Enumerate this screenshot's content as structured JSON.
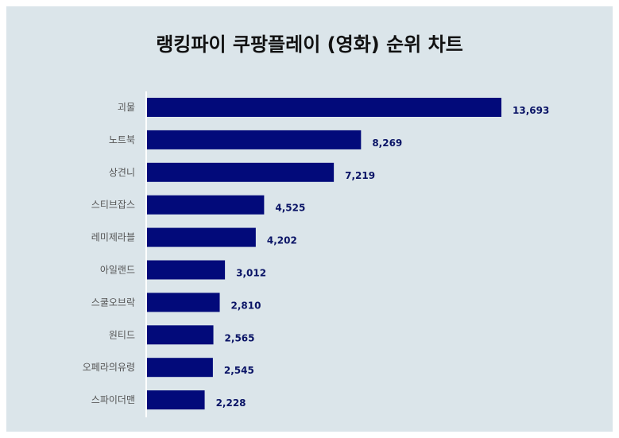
{
  "chart_data": {
    "type": "bar",
    "orientation": "horizontal",
    "title": "랭킹파이 쿠팡플레이 (영화) 순위 차트",
    "categories": [
      "괴물",
      "노트북",
      "상견니",
      "스티브잡스",
      "레미제라블",
      "아일랜드",
      "스쿨오브락",
      "원티드",
      "오페라의유령",
      "스파이더맨"
    ],
    "values": [
      13693,
      8269,
      7219,
      4525,
      4202,
      3012,
      2810,
      2565,
      2545,
      2228
    ],
    "value_labels": [
      "13,693",
      "8,269",
      "7,219",
      "4,525",
      "4,202",
      "3,012",
      "2,810",
      "2,565",
      "2,545",
      "2,228"
    ],
    "xlim": [
      0,
      13693
    ],
    "grid": false,
    "legend": "none",
    "bar_color": "#020a7a",
    "label_color": "#0a1466"
  }
}
